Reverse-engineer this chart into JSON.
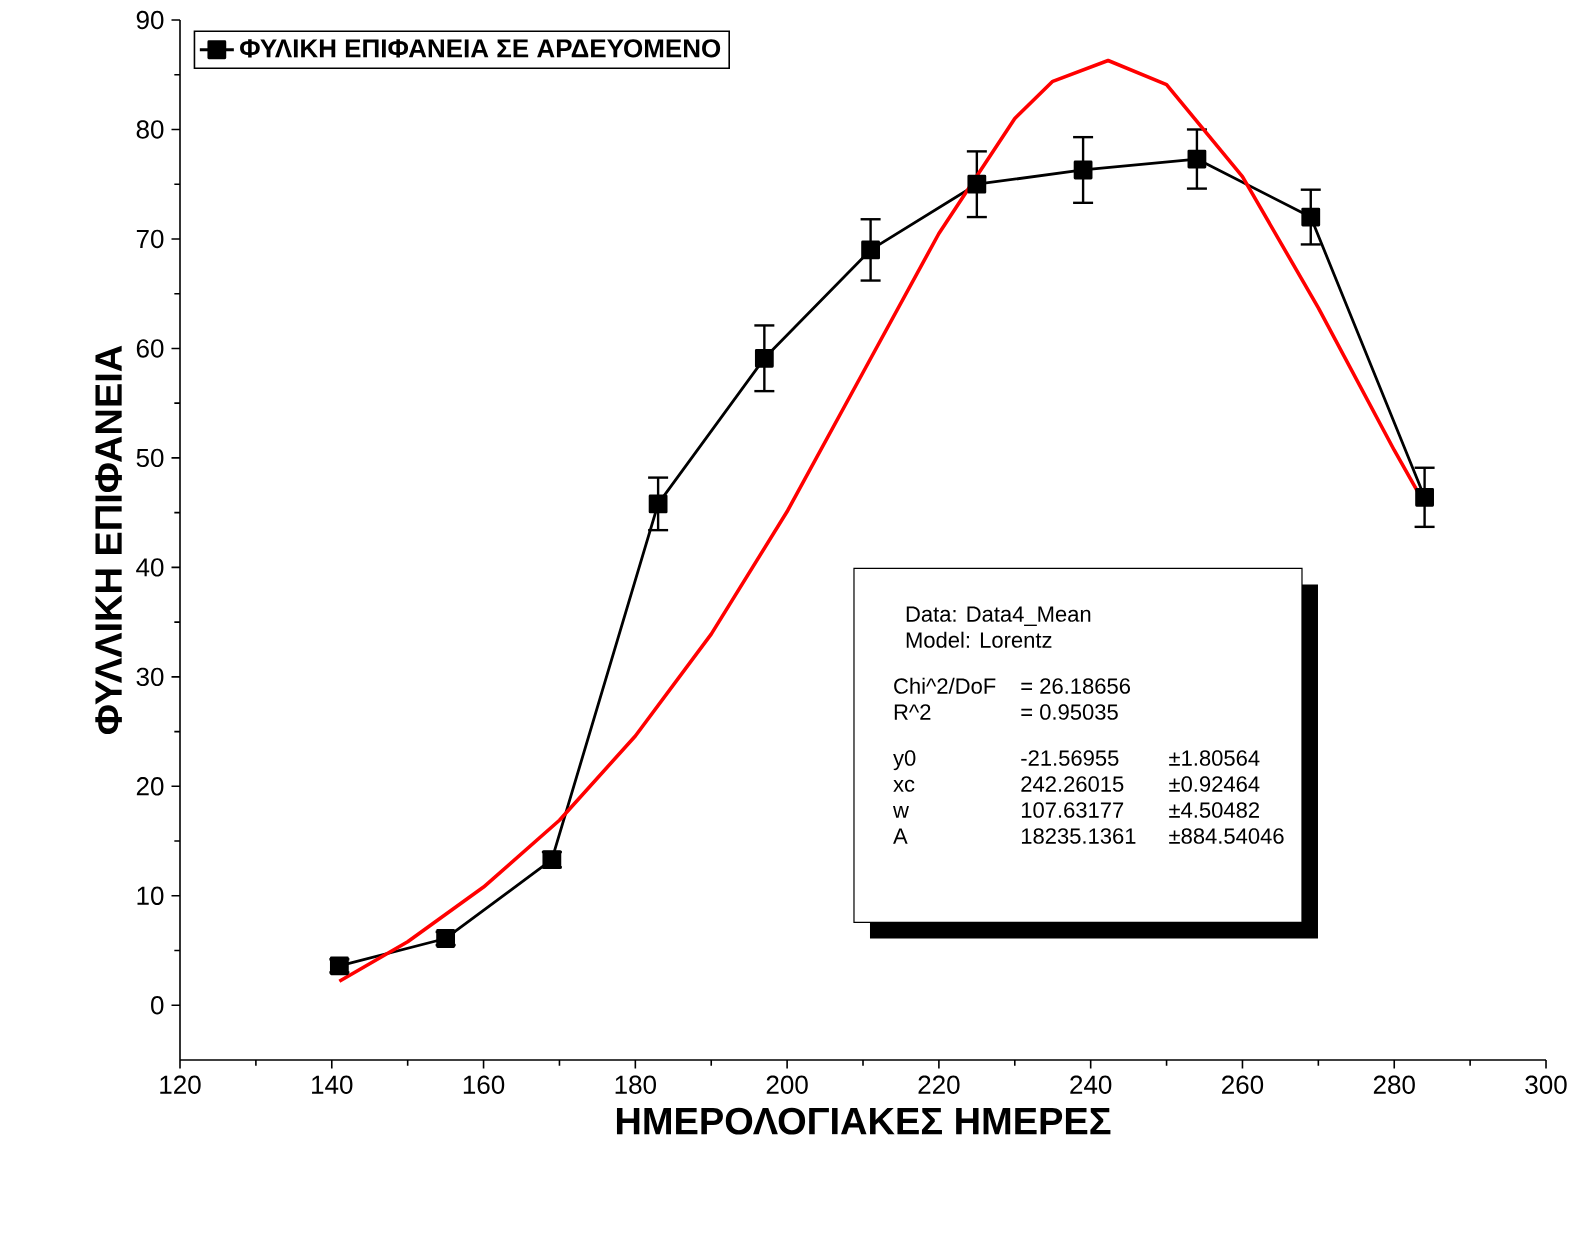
{
  "chart_data": {
    "type": "line",
    "xlabel": "ΗΜΕΡΟΛΟΓΙΑΚΕΣ ΗΜΕΡΕΣ",
    "ylabel": "ΦΥΛΛΙΚΗ ΕΠΙΦΑΝΕΙΑ",
    "x": [
      141,
      155,
      169,
      183,
      197,
      211,
      225,
      239,
      254,
      269,
      284
    ],
    "series": [
      {
        "name": "ΦΥΛΙΚΗ ΕΠΙΦΑΝΕΙΑ ΣΕ ΑΡΔΕΥΟΜΕΝΟ",
        "color": "#000000",
        "marker": "square",
        "values": [
          3.6,
          6.1,
          13.3,
          45.8,
          59.1,
          69.0,
          75.0,
          76.3,
          77.3,
          72.0,
          46.4
        ],
        "errors": [
          0.6,
          0.6,
          0.7,
          2.4,
          3.0,
          2.8,
          3.0,
          3.0,
          2.7,
          2.5,
          2.7
        ]
      },
      {
        "type": "line",
        "color": "#ff0000",
        "marker": "none",
        "x": [
          141,
          150,
          160,
          170,
          180,
          190,
          200,
          210,
          220,
          230,
          235,
          242.3,
          250,
          260,
          270,
          280,
          284
        ],
        "values": [
          2.2,
          5.8,
          10.8,
          16.9,
          24.6,
          33.9,
          45.1,
          57.8,
          70.5,
          81.0,
          84.4,
          86.3,
          84.1,
          75.7,
          63.7,
          50.7,
          45.8
        ]
      }
    ],
    "xlim": [
      120,
      300
    ],
    "xticks": [
      120,
      140,
      160,
      180,
      200,
      220,
      240,
      260,
      280,
      300
    ],
    "ylim": [
      -5,
      90
    ],
    "yticks": [
      0,
      10,
      20,
      30,
      40,
      50,
      60,
      70,
      80,
      90
    ],
    "grid": false,
    "legend": "top left",
    "annotations": [
      "Data: Data4_Mean",
      "Model: Lorentz",
      "Chi^2/DoF",
      "= 26.18656",
      "R^2",
      "=  0.95035",
      "y0",
      "-21.56955",
      "±1.80564",
      "xc",
      "242.26015",
      "±0.92464",
      "w",
      "107.63177",
      "±4.50482",
      "A",
      "18235.1361",
      "±884.54046"
    ]
  }
}
